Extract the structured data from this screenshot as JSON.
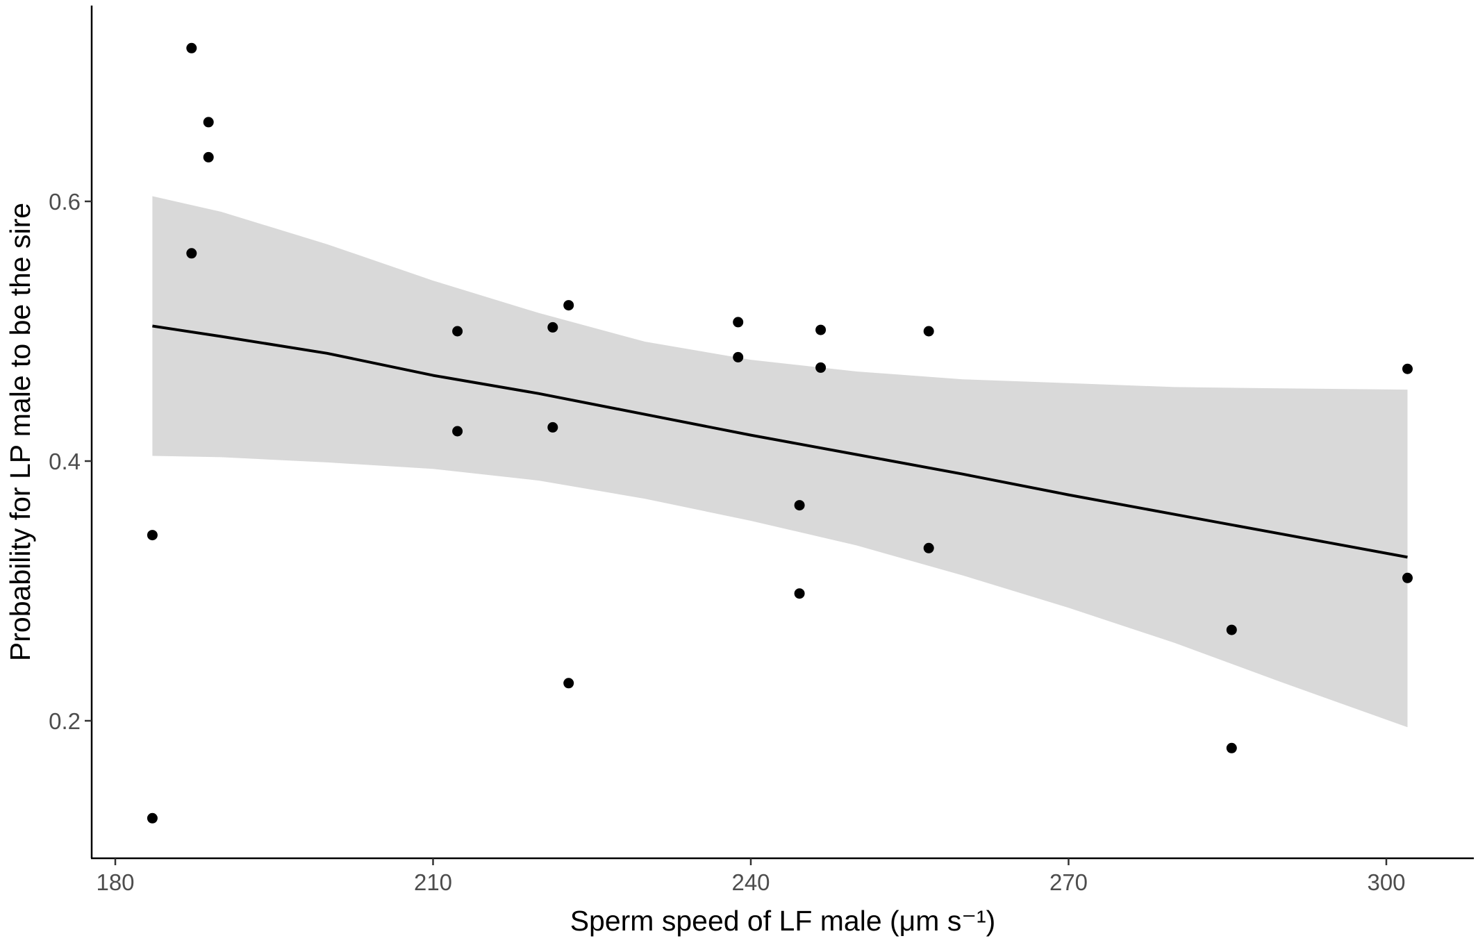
{
  "chart_data": {
    "type": "scatter",
    "xlabel": "Sperm speed of LF male (μm s⁻¹)",
    "ylabel": "Probability for LP male to be the sire",
    "xlim": [
      178,
      305
    ],
    "ylim": [
      0.095,
      0.745
    ],
    "x_ticks": [
      180,
      210,
      240,
      270,
      300
    ],
    "y_ticks": [
      0.2,
      0.4,
      0.6
    ],
    "x_tick_labels": [
      "180",
      "210",
      "240",
      "270",
      "300"
    ],
    "y_tick_labels": [
      "0.2",
      "0.4",
      "0.6"
    ],
    "grid": false,
    "points": [
      {
        "x": 183.5,
        "y": 0.125
      },
      {
        "x": 183.5,
        "y": 0.343
      },
      {
        "x": 187.2,
        "y": 0.718
      },
      {
        "x": 187.2,
        "y": 0.56
      },
      {
        "x": 188.8,
        "y": 0.661
      },
      {
        "x": 188.8,
        "y": 0.634
      },
      {
        "x": 212.3,
        "y": 0.5
      },
      {
        "x": 212.3,
        "y": 0.423
      },
      {
        "x": 221.3,
        "y": 0.503
      },
      {
        "x": 221.3,
        "y": 0.426
      },
      {
        "x": 222.8,
        "y": 0.52
      },
      {
        "x": 222.8,
        "y": 0.229
      },
      {
        "x": 238.8,
        "y": 0.507
      },
      {
        "x": 238.8,
        "y": 0.48
      },
      {
        "x": 244.6,
        "y": 0.366
      },
      {
        "x": 244.6,
        "y": 0.298
      },
      {
        "x": 246.6,
        "y": 0.501
      },
      {
        "x": 246.6,
        "y": 0.472
      },
      {
        "x": 256.8,
        "y": 0.5
      },
      {
        "x": 256.8,
        "y": 0.333
      },
      {
        "x": 285.4,
        "y": 0.27
      },
      {
        "x": 285.4,
        "y": 0.179
      },
      {
        "x": 302.0,
        "y": 0.471
      },
      {
        "x": 302.0,
        "y": 0.31
      }
    ],
    "fit": {
      "x": [
        183.5,
        190,
        200,
        210,
        220,
        230,
        240,
        250,
        260,
        270,
        280,
        290,
        302
      ],
      "y": [
        0.504,
        0.496,
        0.483,
        0.466,
        0.452,
        0.436,
        0.42,
        0.405,
        0.39,
        0.374,
        0.359,
        0.344,
        0.326
      ]
    },
    "confidence_band": {
      "x": [
        183.5,
        190,
        200,
        210,
        220,
        230,
        240,
        250,
        260,
        270,
        280,
        290,
        302
      ],
      "lower": [
        0.404,
        0.403,
        0.399,
        0.394,
        0.385,
        0.371,
        0.354,
        0.335,
        0.312,
        0.287,
        0.26,
        0.23,
        0.195
      ],
      "upper": [
        0.604,
        0.592,
        0.567,
        0.539,
        0.514,
        0.492,
        0.478,
        0.469,
        0.463,
        0.46,
        0.457,
        0.456,
        0.455
      ]
    },
    "colors": {
      "points": "#000000",
      "fit_line": "#000000",
      "band": "#d9d9d9",
      "axis": "#000000",
      "tick_labels": "#4d4d4d"
    }
  }
}
